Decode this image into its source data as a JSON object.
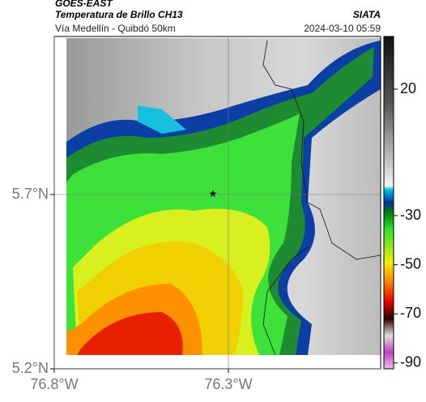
{
  "header": {
    "source": "GOES-EAST",
    "product": "Temperatura de Brillo CH13",
    "org": "SIATA",
    "route": "Vía Medellín - Quibdó 50km",
    "datetime": "2024-03-10 05:59"
  },
  "map": {
    "lat_ticks": [
      {
        "value": 5.2,
        "label": "5.2°N"
      },
      {
        "value": 5.7,
        "label": "5.7°N"
      }
    ],
    "lon_ticks": [
      {
        "value": -76.8,
        "label": "76.8°W"
      },
      {
        "value": -76.3,
        "label": "76.3°W"
      }
    ],
    "grid": true
  },
  "colorbar": {
    "ticks": [
      20,
      -30,
      -50,
      -70,
      -90
    ]
  }
}
